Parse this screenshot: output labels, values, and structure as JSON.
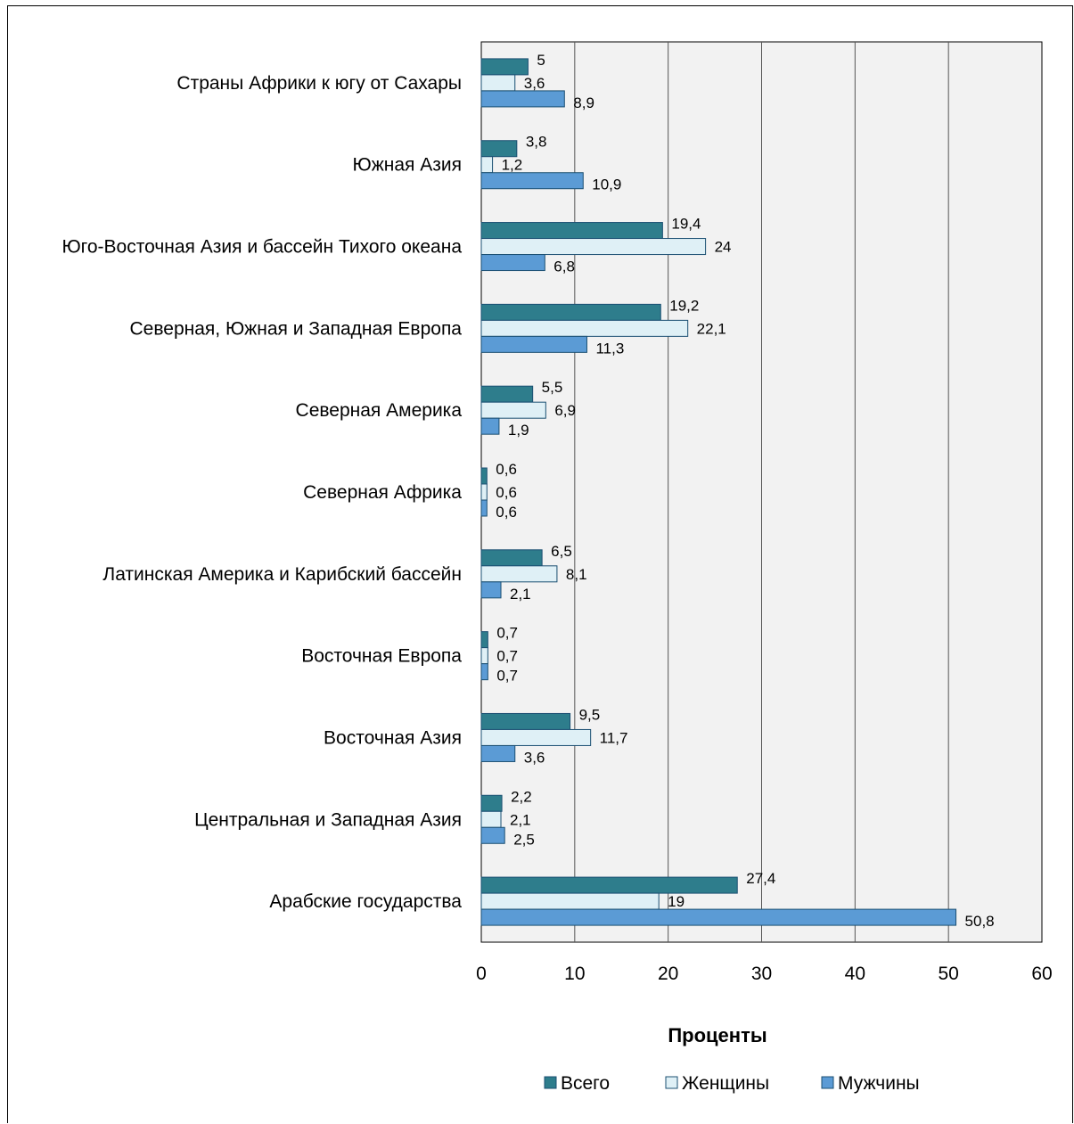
{
  "chart_data": {
    "type": "bar",
    "orientation": "horizontal",
    "categories": [
      "Страны Африки к югу от Сахары",
      "Южная Азия",
      "Юго-Восточная Азия и бассейн Тихого океана",
      "Северная, Южная и Западная Европа",
      "Северная Америка",
      "Северная Африка",
      "Латинская Америка и Карибский бассейн",
      "Восточная Европа",
      "Восточная Азия",
      "Центральная и Западная Азия",
      "Арабские государства"
    ],
    "series": [
      {
        "name": "Всего",
        "color": "#2e7d8c",
        "values": [
          5,
          3.8,
          19.4,
          19.2,
          5.5,
          0.6,
          6.5,
          0.7,
          9.5,
          2.2,
          27.4
        ],
        "labels": [
          "5",
          "3,8",
          "19,4",
          "19,2",
          "5,5",
          "0,6",
          "6,5",
          "0,7",
          "9,5",
          "2,2",
          "27,4"
        ]
      },
      {
        "name": "Женщины",
        "color": "#dff0f6",
        "values": [
          3.6,
          1.2,
          24,
          22.1,
          6.9,
          0.6,
          8.1,
          0.7,
          11.7,
          2.1,
          19
        ],
        "labels": [
          "3,6",
          "1,2",
          "24",
          "22,1",
          "6,9",
          "0,6",
          "8,1",
          "0,7",
          "11,7",
          "2,1",
          "19"
        ]
      },
      {
        "name": "Мужчины",
        "color": "#5b9bd5",
        "values": [
          8.9,
          10.9,
          6.8,
          11.3,
          1.9,
          0.6,
          2.1,
          0.7,
          3.6,
          2.5,
          50.8
        ],
        "labels": [
          "8,9",
          "10,9",
          "6,8",
          "11,3",
          "1,9",
          "0,6",
          "2,1",
          "0,7",
          "3,6",
          "2,5",
          "50,8"
        ]
      }
    ],
    "xlabel": "Проценты",
    "xlim": [
      0,
      60
    ],
    "xticks": [
      0,
      10,
      20,
      30,
      40,
      50,
      60
    ],
    "grid": "vertical",
    "legend": "bottom"
  }
}
